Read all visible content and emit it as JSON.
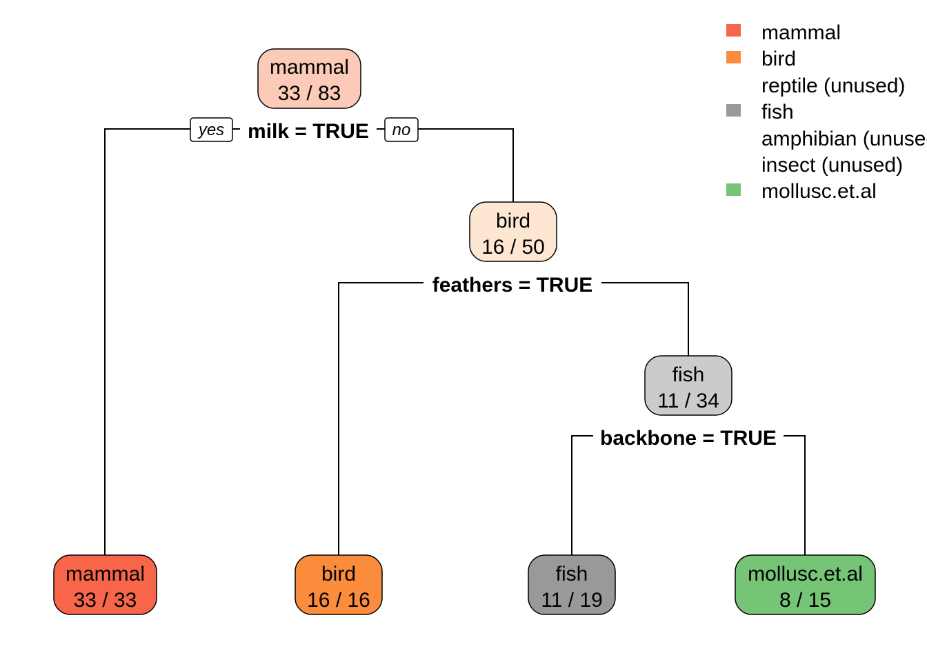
{
  "tree": {
    "nodes": [
      {
        "id": "root",
        "cls": "mammal",
        "counts": "33 / 83",
        "fill": "#fbcbb7"
      },
      {
        "id": "n_bird",
        "cls": "bird",
        "counts": "16 / 50",
        "fill": "#fde6d2"
      },
      {
        "id": "n_fish",
        "cls": "fish",
        "counts": "11 / 34",
        "fill": "#cbcbcb"
      },
      {
        "id": "leaf_mammal",
        "cls": "mammal",
        "counts": "33 / 33",
        "fill": "#f7654a"
      },
      {
        "id": "leaf_bird",
        "cls": "bird",
        "counts": "16 / 16",
        "fill": "#fb8c3c"
      },
      {
        "id": "leaf_fish",
        "cls": "fish",
        "counts": "11 / 19",
        "fill": "#999999"
      },
      {
        "id": "leaf_mollusc",
        "cls": "mollusc.et.al",
        "counts": "8 / 15",
        "fill": "#76c476"
      }
    ],
    "splits": [
      {
        "id": "split_milk",
        "label": "milk = TRUE"
      },
      {
        "id": "split_feathers",
        "label": "feathers = TRUE"
      },
      {
        "id": "split_backbone",
        "label": "backbone = TRUE"
      }
    ],
    "branch_labels": {
      "yes": "yes",
      "no": "no"
    }
  },
  "legend": [
    {
      "label": "mammal",
      "color": "#f7654a"
    },
    {
      "label": "bird",
      "color": "#fb8c3c"
    },
    {
      "label": "reptile (unused)",
      "color": null
    },
    {
      "label": "fish",
      "color": "#999999"
    },
    {
      "label": "amphibian (unused)",
      "color": null
    },
    {
      "label": "insect (unused)",
      "color": null
    },
    {
      "label": "mollusc.et.al",
      "color": "#76c476"
    }
  ]
}
